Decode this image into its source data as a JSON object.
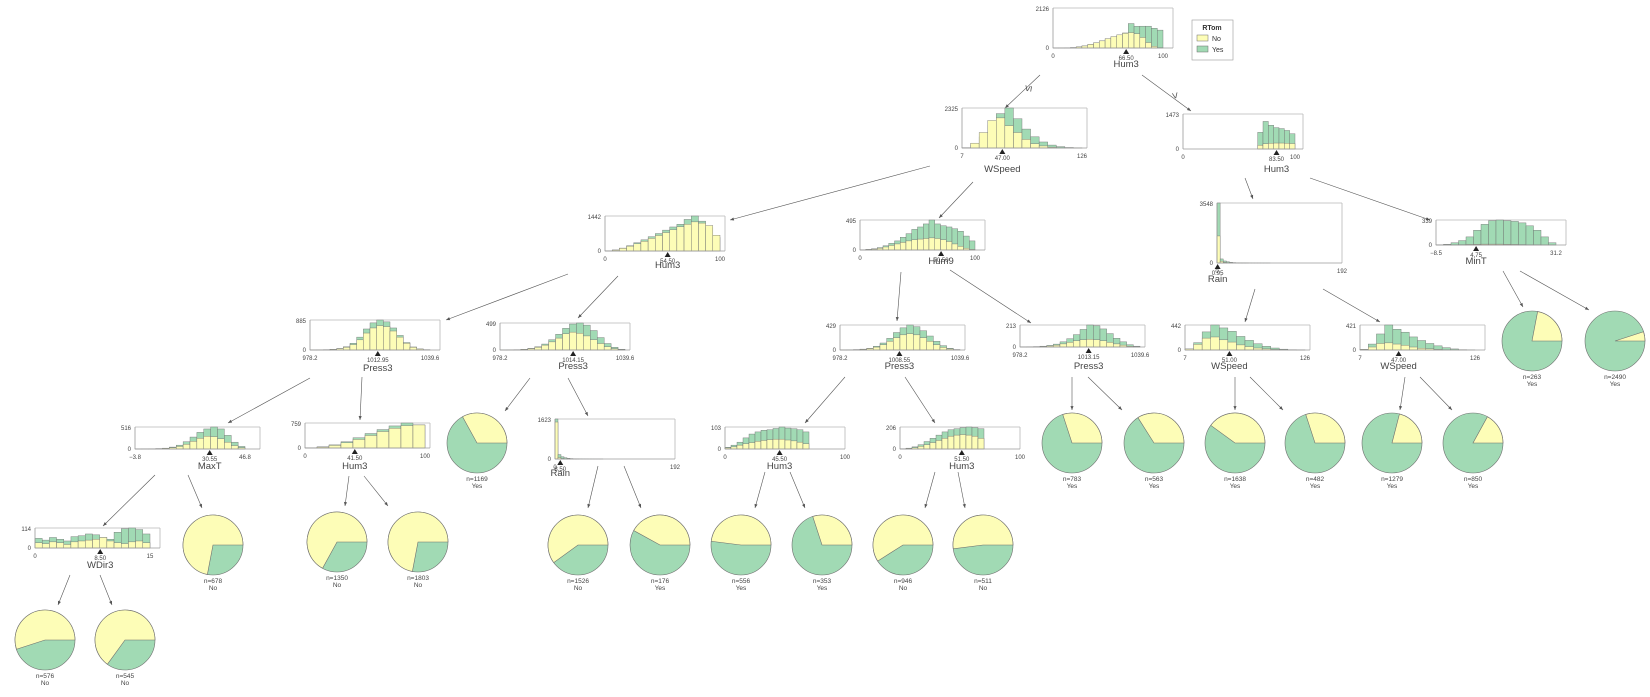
{
  "colors": {
    "No": "#fdfdb7",
    "Yes": "#a1dab4",
    "outline": "#6e6e6e"
  },
  "legend": {
    "title": "RTom",
    "classes": [
      "No",
      "Yes"
    ]
  },
  "edge_labels": {
    "left": "≤",
    "right": ">"
  },
  "nodes": [
    {
      "id": "root",
      "feature": "Hum3",
      "split": "66.50",
      "ymax": "2126",
      "xmin": "0",
      "xmax": "100",
      "splitfrac": 0.665,
      "no": [
        2,
        5,
        10,
        25,
        60,
        110,
        190,
        280,
        380,
        500,
        610,
        700,
        780,
        820,
        760,
        560,
        290,
        90,
        20
      ],
      "yes": [
        1,
        3,
        8,
        20,
        55,
        110,
        190,
        280,
        380,
        480,
        560,
        650,
        800,
        1300,
        1150,
        1160,
        1160,
        1050,
        950
      ]
    },
    {
      "id": "n_l",
      "feature": "WSpeed",
      "split": "47.00",
      "ymax": "2325",
      "xmin": "7",
      "xmax": "126",
      "splitfrac": 0.336,
      "no": [
        20,
        280,
        900,
        1600,
        1750,
        1300,
        900,
        500,
        250,
        120,
        50,
        20,
        8,
        3
      ],
      "yes": [
        15,
        180,
        650,
        1300,
        2000,
        2325,
        1700,
        1100,
        650,
        350,
        170,
        80,
        30,
        10
      ]
    },
    {
      "id": "n_r",
      "feature": "Hum3",
      "split": "83.50",
      "ymax": "1473",
      "xmin": "0",
      "xmax": "100",
      "splitfrac": 0.835,
      "no": [
        0,
        0,
        0,
        0,
        0,
        0,
        0,
        0,
        0,
        0,
        0,
        0,
        0,
        0,
        160,
        220,
        240,
        250,
        250,
        240,
        230
      ],
      "yes": [
        0,
        0,
        0,
        0,
        0,
        0,
        0,
        0,
        0,
        0,
        0,
        0,
        0,
        0,
        700,
        1160,
        1000,
        900,
        860,
        780,
        640
      ]
    },
    {
      "id": "n_ll",
      "feature": "Hum3",
      "split": "54.50",
      "ymax": "1442",
      "xmin": "0",
      "xmax": "100",
      "splitfrac": 0.545,
      "no": [
        5,
        40,
        110,
        200,
        300,
        400,
        520,
        640,
        760,
        880,
        1000,
        1100,
        1200,
        1150,
        1050,
        650
      ],
      "yes": [
        5,
        42,
        120,
        220,
        340,
        460,
        590,
        720,
        860,
        990,
        1100,
        1300,
        1442,
        1230,
        960,
        560
      ]
    },
    {
      "id": "n_lr",
      "feature": "Hum9",
      "split": "70.50",
      "ymax": "495",
      "xmin": "0",
      "xmax": "100",
      "splitfrac": 0.705,
      "no": [
        3,
        8,
        15,
        30,
        50,
        75,
        100,
        125,
        150,
        170,
        180,
        190,
        200,
        190,
        170,
        140,
        100,
        60,
        30,
        10
      ],
      "yes": [
        3,
        10,
        20,
        40,
        70,
        110,
        150,
        210,
        270,
        340,
        380,
        430,
        495,
        430,
        400,
        380,
        350,
        310,
        230,
        150
      ]
    },
    {
      "id": "n_rl",
      "feature": "Rain",
      "split": "0.95",
      "ymax": "3548",
      "xmin": "0",
      "xmax": "192",
      "splitfrac": 0.005,
      "no": [
        1600,
        100,
        40,
        20,
        10,
        6,
        4,
        3,
        2,
        1,
        0,
        0,
        0,
        0,
        0,
        0,
        0,
        0,
        0,
        0,
        0,
        0,
        0,
        0,
        0,
        0,
        0,
        0,
        0,
        0,
        0,
        0,
        0,
        0,
        0,
        0,
        0,
        0,
        0,
        0
      ],
      "yes": [
        3548,
        240,
        120,
        70,
        40,
        25,
        15,
        10,
        8,
        5,
        4,
        3,
        2,
        2,
        1,
        1,
        1,
        0,
        0,
        0,
        0,
        0,
        0,
        0,
        0,
        0,
        0,
        0,
        0,
        0,
        0,
        0,
        0,
        0,
        0,
        0,
        0,
        0,
        0,
        0
      ]
    },
    {
      "id": "n_rr",
      "feature": "MinT",
      "split": "4.75",
      "ymax": "339",
      "xmin": "−8.5",
      "xmax": "31.2",
      "splitfrac": 0.334,
      "no": [
        1,
        2,
        3,
        5,
        8,
        10,
        12,
        12,
        12,
        10,
        8,
        6,
        4,
        3,
        2,
        1
      ],
      "yes": [
        3,
        10,
        30,
        60,
        110,
        200,
        280,
        330,
        339,
        330,
        320,
        300,
        260,
        200,
        110,
        30
      ]
    },
    {
      "id": "n_lll",
      "feature": "Press3",
      "split": "1012.95",
      "ymax": "885",
      "xmin": "978.2",
      "xmax": "1039.6",
      "splitfrac": 0.565,
      "no": [
        2,
        5,
        10,
        20,
        40,
        80,
        160,
        300,
        500,
        650,
        720,
        690,
        560,
        380,
        200,
        80,
        30,
        10
      ],
      "yes": [
        2,
        5,
        10,
        22,
        45,
        95,
        200,
        380,
        620,
        800,
        885,
        830,
        650,
        430,
        220,
        90,
        30,
        10
      ]
    },
    {
      "id": "n_llr",
      "feature": "Press3",
      "split": "1014.15",
      "ymax": "499",
      "xmin": "978.2",
      "xmax": "1039.6",
      "splitfrac": 0.585,
      "no": [
        1,
        3,
        6,
        12,
        25,
        50,
        90,
        150,
        220,
        300,
        330,
        310,
        260,
        190,
        120,
        60,
        25,
        8
      ],
      "yes": [
        1,
        3,
        6,
        14,
        30,
        60,
        110,
        190,
        290,
        400,
        480,
        499,
        460,
        360,
        230,
        120,
        50,
        15
      ]
    },
    {
      "id": "n_lrl",
      "feature": "Press3",
      "split": "1008.55",
      "ymax": "429",
      "xmin": "978.2",
      "xmax": "1039.6",
      "splitfrac": 0.495,
      "no": [
        1,
        3,
        6,
        12,
        25,
        50,
        90,
        150,
        210,
        260,
        280,
        260,
        210,
        150,
        90,
        45,
        18,
        5
      ],
      "yes": [
        1,
        3,
        7,
        15,
        30,
        65,
        120,
        200,
        300,
        380,
        429,
        400,
        330,
        240,
        150,
        75,
        30,
        8
      ]
    },
    {
      "id": "n_lrr",
      "feature": "Press3",
      "split": "1013.15",
      "ymax": "213",
      "xmin": "978.2",
      "xmax": "1039.6",
      "splitfrac": 0.572,
      "no": [
        1,
        2,
        3,
        5,
        10,
        18,
        30,
        45,
        60,
        70,
        75,
        70,
        60,
        45,
        30,
        18,
        8,
        3
      ],
      "yes": [
        1,
        2,
        4,
        8,
        15,
        28,
        50,
        80,
        120,
        170,
        213,
        205,
        175,
        130,
        85,
        50,
        22,
        8
      ]
    },
    {
      "id": "n_rll",
      "feature": "WSpeed",
      "split": "51.00",
      "ymax": "442",
      "xmin": "7",
      "xmax": "126",
      "splitfrac": 0.37,
      "no": [
        20,
        100,
        210,
        230,
        180,
        140,
        90,
        60,
        35,
        20,
        10,
        5,
        2,
        1
      ],
      "yes": [
        15,
        130,
        320,
        442,
        390,
        330,
        240,
        170,
        110,
        65,
        35,
        15,
        6,
        2
      ]
    },
    {
      "id": "n_rlr",
      "feature": "WSpeed",
      "split": "47.00",
      "ymax": "421",
      "xmin": "7",
      "xmax": "126",
      "splitfrac": 0.336,
      "no": [
        10,
        50,
        110,
        120,
        100,
        80,
        50,
        30,
        20,
        10,
        5,
        2,
        1,
        0
      ],
      "yes": [
        10,
        100,
        270,
        421,
        350,
        300,
        220,
        160,
        110,
        70,
        40,
        18,
        6,
        2
      ]
    },
    {
      "id": "n_llll",
      "feature": "MaxT",
      "split": "30.55",
      "ymax": "516",
      "xmin": "−3.8",
      "xmax": "46.8",
      "splitfrac": 0.679,
      "no": [
        1,
        2,
        4,
        8,
        15,
        30,
        60,
        110,
        180,
        250,
        300,
        290,
        240,
        160,
        80,
        30
      ],
      "yes": [
        1,
        2,
        5,
        10,
        20,
        45,
        90,
        170,
        280,
        390,
        470,
        516,
        470,
        320,
        160,
        60
      ]
    },
    {
      "id": "n_lllr",
      "feature": "Hum3",
      "split": "41.50",
      "ymax": "759",
      "xmin": "0",
      "xmax": "100",
      "splitfrac": 0.415,
      "no": [
        5,
        30,
        80,
        160,
        260,
        380,
        500,
        600,
        680,
        700
      ],
      "yes": [
        5,
        35,
        95,
        190,
        310,
        440,
        560,
        670,
        759,
        700
      ]
    },
    {
      "id": "n_llrr",
      "feature": "Rain",
      "split": "8.50",
      "ymax": "1623",
      "xmin": "0",
      "xmax": "192",
      "splitfrac": 0.044,
      "no": [
        1500,
        60,
        20,
        8,
        4,
        2,
        1,
        1,
        0,
        0,
        0,
        0,
        0,
        0,
        0,
        0,
        0,
        0,
        0,
        0,
        0,
        0,
        0,
        0,
        0,
        0,
        0,
        0,
        0,
        0,
        0,
        0,
        0,
        0,
        0,
        0,
        0,
        0,
        0,
        0
      ],
      "yes": [
        1623,
        180,
        90,
        50,
        30,
        18,
        12,
        8,
        6,
        4,
        3,
        2,
        2,
        1,
        1,
        1,
        0,
        0,
        0,
        0,
        0,
        0,
        0,
        0,
        0,
        0,
        0,
        0,
        0,
        0,
        0,
        0,
        0,
        0,
        0,
        0,
        0,
        0,
        0,
        0
      ]
    },
    {
      "id": "n_lrll",
      "feature": "Hum3",
      "split": "45.50",
      "ymax": "103",
      "xmin": "0",
      "xmax": "100",
      "splitfrac": 0.455,
      "no": [
        5,
        10,
        18,
        25,
        30,
        36,
        40,
        44,
        46,
        46,
        42,
        38,
        32,
        25,
        0,
        0,
        0,
        0,
        0,
        0
      ],
      "yes": [
        8,
        18,
        32,
        52,
        70,
        80,
        88,
        90,
        96,
        103,
        98,
        95,
        90,
        80,
        0,
        0,
        0,
        0,
        0,
        0
      ]
    },
    {
      "id": "n_lrlr",
      "feature": "Hum3",
      "split": "51.50",
      "ymax": "206",
      "xmin": "0",
      "xmax": "100",
      "splitfrac": 0.515,
      "no": [
        2,
        5,
        12,
        25,
        40,
        60,
        80,
        100,
        120,
        130,
        135,
        130,
        120,
        100,
        0,
        0,
        0,
        0,
        0,
        0
      ],
      "yes": [
        3,
        8,
        20,
        40,
        70,
        100,
        130,
        160,
        180,
        190,
        200,
        206,
        200,
        190,
        0,
        0,
        0,
        0,
        0,
        0
      ]
    },
    {
      "id": "n_lllll",
      "feature": "WDir3",
      "split": "8.50",
      "ymax": "114",
      "xmin": "0",
      "xmax": "15",
      "splitfrac": 0.567,
      "no": [
        30,
        25,
        35,
        30,
        20,
        35,
        40,
        45,
        50,
        60,
        40,
        30,
        25,
        35,
        40,
        30
      ],
      "yes": [
        55,
        45,
        60,
        50,
        40,
        65,
        70,
        80,
        75,
        60,
        50,
        90,
        110,
        114,
        105,
        80
      ]
    }
  ],
  "leaves": [
    {
      "id": "lf1",
      "n": "n=576",
      "label": "No",
      "no": 0.55
    },
    {
      "id": "lf2",
      "n": "n=545",
      "label": "No",
      "no": 0.65
    },
    {
      "id": "lf3",
      "n": "n=678",
      "label": "No",
      "no": 0.72
    },
    {
      "id": "lf4",
      "n": "n=1350",
      "label": "No",
      "no": 0.67
    },
    {
      "id": "lf5",
      "n": "n=1803",
      "label": "No",
      "no": 0.72
    },
    {
      "id": "lf6",
      "n": "n=1169",
      "label": "Yes",
      "no": 0.33
    },
    {
      "id": "lf7",
      "n": "n=1526",
      "label": "No",
      "no": 0.6
    },
    {
      "id": "lf8",
      "n": "n=176",
      "label": "Yes",
      "no": 0.42
    },
    {
      "id": "lf9",
      "n": "n=556",
      "label": "Yes",
      "no": 0.48
    },
    {
      "id": "lf10",
      "n": "n=353",
      "label": "Yes",
      "no": 0.3
    },
    {
      "id": "lf11",
      "n": "n=946",
      "label": "No",
      "no": 0.59
    },
    {
      "id": "lf12",
      "n": "n=511",
      "label": "No",
      "no": 0.52
    },
    {
      "id": "lf13",
      "n": "n=783",
      "label": "Yes",
      "no": 0.3
    },
    {
      "id": "lf14",
      "n": "n=563",
      "label": "Yes",
      "no": 0.34
    },
    {
      "id": "lf15",
      "n": "n=1638",
      "label": "Yes",
      "no": 0.4
    },
    {
      "id": "lf16",
      "n": "n=482",
      "label": "Yes",
      "no": 0.3
    },
    {
      "id": "lf17",
      "n": "n=1279",
      "label": "Yes",
      "no": 0.21
    },
    {
      "id": "lf18",
      "n": "n=850",
      "label": "Yes",
      "no": 0.17
    },
    {
      "id": "lf19",
      "n": "n=263",
      "label": "Yes",
      "no": 0.22
    },
    {
      "id": "lf20",
      "n": "n=2490",
      "label": "Yes",
      "no": 0.05
    }
  ]
}
